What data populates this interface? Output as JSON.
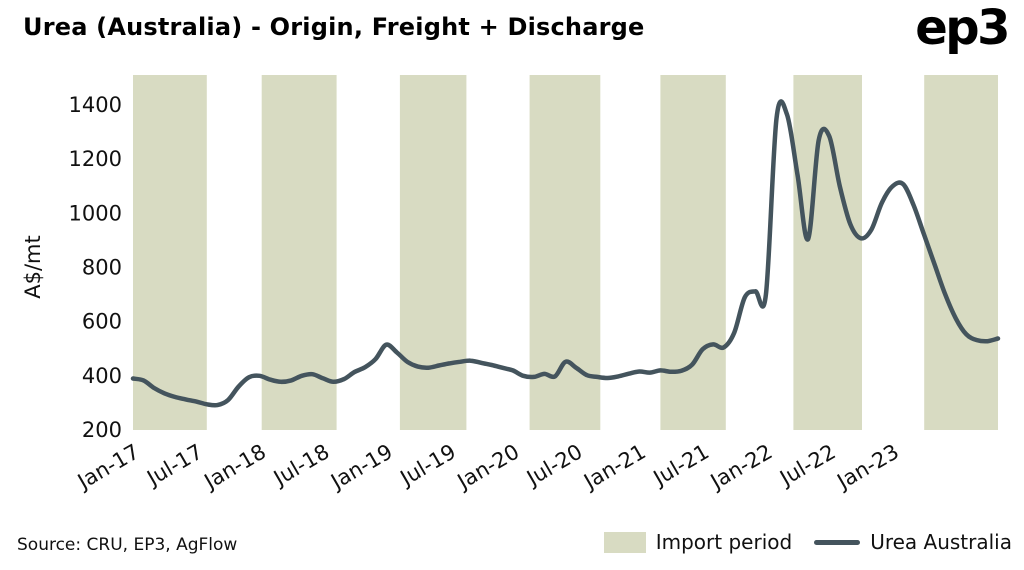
{
  "header": {
    "title": "Urea (Australia) - Origin, Freight + Discharge",
    "logo": "ep3"
  },
  "footer": {
    "source": "Source: CRU, EP3, AgFlow"
  },
  "legend": {
    "import_period": "Import period",
    "urea_australia": "Urea Australia"
  },
  "colors": {
    "band": "#d8dbc2",
    "line": "#44545d",
    "text": "#111111",
    "background": "#ffffff"
  },
  "chart_data": {
    "type": "line",
    "title": "Urea (Australia) - Origin, Freight + Discharge",
    "xlabel": "",
    "ylabel": "A$/mt",
    "ylim": [
      200,
      1400
    ],
    "yticks": [
      200,
      400,
      600,
      800,
      1000,
      1200,
      1400
    ],
    "grid": false,
    "legend_position": "bottom-right",
    "xticks": [
      {
        "label": "Jan-17",
        "index": 0
      },
      {
        "label": "Jul-17",
        "index": 6
      },
      {
        "label": "Jan-18",
        "index": 12
      },
      {
        "label": "Jul-18",
        "index": 18
      },
      {
        "label": "Jan-19",
        "index": 24
      },
      {
        "label": "Jul-19",
        "index": 30
      },
      {
        "label": "Jan-20",
        "index": 36
      },
      {
        "label": "Jul-20",
        "index": 42
      },
      {
        "label": "Jan-21",
        "index": 48
      },
      {
        "label": "Jul-21",
        "index": 54
      },
      {
        "label": "Jan-22",
        "index": 60
      },
      {
        "label": "Jul-22",
        "index": 66
      },
      {
        "label": "Jan-23",
        "index": 72
      }
    ],
    "x_months": [
      "Jan-17",
      "Feb-17",
      "Mar-17",
      "Apr-17",
      "May-17",
      "Jun-17",
      "Jul-17",
      "Aug-17",
      "Sep-17",
      "Oct-17",
      "Nov-17",
      "Dec-17",
      "Jan-18",
      "Feb-18",
      "Mar-18",
      "Apr-18",
      "May-18",
      "Jun-18",
      "Jul-18",
      "Aug-18",
      "Sep-18",
      "Oct-18",
      "Nov-18",
      "Dec-18",
      "Jan-19",
      "Feb-19",
      "Mar-19",
      "Apr-19",
      "May-19",
      "Jun-19",
      "Jul-19",
      "Aug-19",
      "Sep-19",
      "Oct-19",
      "Nov-19",
      "Dec-19",
      "Jan-20",
      "Feb-20",
      "Mar-20",
      "Apr-20",
      "May-20",
      "Jun-20",
      "Jul-20",
      "Aug-20",
      "Sep-20",
      "Oct-20",
      "Nov-20",
      "Dec-20",
      "Jan-21",
      "Feb-21",
      "Mar-21",
      "Apr-21",
      "May-21",
      "Jun-21",
      "Jul-21",
      "Aug-21",
      "Sep-21",
      "Oct-21",
      "Nov-21",
      "Dec-21",
      "Jan-22",
      "Feb-22",
      "Mar-22",
      "Apr-22",
      "May-22",
      "Jun-22",
      "Jul-22",
      "Aug-22",
      "Sep-22",
      "Oct-22",
      "Nov-22",
      "Dec-22",
      "Jan-23",
      "Feb-23",
      "Mar-23",
      "Apr-23",
      "May-23",
      "Jun-23",
      "Jul-23",
      "Aug-23",
      "Sep-23",
      "Oct-23",
      "Nov-23"
    ],
    "series": [
      {
        "name": "Urea Australia",
        "values": [
          390,
          383,
          355,
          335,
          322,
          313,
          305,
          295,
          292,
          310,
          360,
          395,
          400,
          386,
          378,
          383,
          400,
          406,
          391,
          378,
          388,
          414,
          432,
          462,
          515,
          487,
          452,
          434,
          430,
          438,
          446,
          452,
          456,
          448,
          440,
          430,
          420,
          400,
          396,
          407,
          398,
          452,
          430,
          403,
          396,
          392,
          398,
          408,
          416,
          412,
          420,
          415,
          419,
          441,
          498,
          516,
          505,
          560,
          690,
          712,
          700,
          1350,
          1365,
          1140,
          905,
          1270,
          1285,
          1100,
          960,
          908,
          940,
          1040,
          1100,
          1108,
          1030,
          920,
          810,
          700,
          612,
          553,
          532,
          528,
          538
        ]
      }
    ],
    "import_periods": [
      {
        "from": "Jan-17",
        "to": "Aug-17",
        "start_index": 0,
        "end_index": 7
      },
      {
        "from": "Jan-18",
        "to": "Aug-18",
        "start_index": 12.2,
        "end_index": 19.3
      },
      {
        "from": "Feb-19",
        "to": "Aug-19",
        "start_index": 25.3,
        "end_index": 31.6
      },
      {
        "from": "Feb-20",
        "to": "Sep-20",
        "start_index": 37.6,
        "end_index": 44.3
      },
      {
        "from": "Mar-21",
        "to": "Sep-21",
        "start_index": 50,
        "end_index": 56.2
      },
      {
        "from": "Mar-22",
        "to": "Oct-22",
        "start_index": 62.6,
        "end_index": 69.1
      },
      {
        "from": "Apr-23",
        "to": "Nov-23",
        "start_index": 75,
        "end_index": 82
      }
    ]
  }
}
